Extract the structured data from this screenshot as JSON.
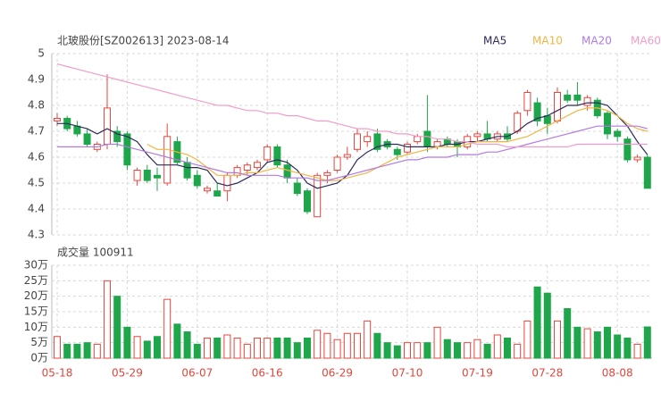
{
  "chart_data": [
    {
      "type": "candlestick",
      "title": "北玻股份[SZ002613] 2023-08-14",
      "up_color": "#e8453c",
      "down_color": "#1fa64a",
      "open": [
        4.74,
        4.75,
        4.72,
        4.69,
        4.63,
        4.65,
        4.7,
        4.69,
        4.51,
        4.55,
        4.53,
        4.5,
        4.66,
        4.58,
        4.53,
        4.47,
        4.47,
        4.47,
        4.53,
        4.55,
        4.56,
        4.59,
        4.64,
        4.57,
        4.5,
        4.47,
        4.37,
        4.53,
        4.55,
        4.6,
        4.63,
        4.66,
        4.69,
        4.66,
        4.63,
        4.62,
        4.66,
        4.7,
        4.64,
        4.67,
        4.66,
        4.64,
        4.68,
        4.69,
        4.67,
        4.69,
        4.7,
        4.78,
        4.81,
        4.76,
        4.74,
        4.84,
        4.84,
        4.8,
        4.82,
        4.77,
        4.7,
        4.67,
        4.59,
        4.6
      ],
      "high": [
        4.77,
        4.76,
        4.74,
        4.71,
        4.66,
        4.92,
        4.72,
        4.7,
        4.56,
        4.57,
        4.56,
        4.73,
        4.68,
        4.6,
        4.55,
        4.49,
        4.5,
        4.54,
        4.57,
        4.58,
        4.59,
        4.65,
        4.65,
        4.59,
        4.52,
        4.48,
        4.54,
        4.55,
        4.61,
        4.64,
        4.71,
        4.7,
        4.71,
        4.67,
        4.64,
        4.66,
        4.69,
        4.84,
        4.67,
        4.68,
        4.67,
        4.69,
        4.7,
        4.74,
        4.7,
        4.72,
        4.78,
        4.86,
        4.83,
        4.79,
        4.87,
        4.86,
        4.89,
        4.84,
        4.83,
        4.78,
        4.71,
        4.68,
        4.61,
        4.61
      ],
      "low": [
        4.72,
        4.7,
        4.68,
        4.64,
        4.62,
        4.63,
        4.64,
        4.55,
        4.49,
        4.5,
        4.47,
        4.49,
        4.57,
        4.51,
        4.48,
        4.46,
        4.45,
        4.43,
        4.52,
        4.53,
        4.55,
        4.58,
        4.56,
        4.5,
        4.45,
        4.38,
        4.37,
        4.5,
        4.54,
        4.59,
        4.62,
        4.64,
        4.62,
        4.63,
        4.59,
        4.61,
        4.65,
        4.62,
        4.63,
        4.64,
        4.6,
        4.63,
        4.66,
        4.66,
        4.66,
        4.66,
        4.69,
        4.76,
        4.72,
        4.69,
        4.73,
        4.81,
        4.8,
        4.78,
        4.75,
        4.67,
        4.66,
        4.58,
        4.58,
        4.48
      ],
      "close": [
        4.75,
        4.71,
        4.69,
        4.65,
        4.65,
        4.79,
        4.66,
        4.57,
        4.55,
        4.51,
        4.52,
        4.68,
        4.58,
        4.52,
        4.49,
        4.48,
        4.45,
        4.53,
        4.56,
        4.57,
        4.58,
        4.64,
        4.57,
        4.52,
        4.46,
        4.39,
        4.53,
        4.54,
        4.6,
        4.61,
        4.69,
        4.68,
        4.63,
        4.64,
        4.61,
        4.65,
        4.68,
        4.64,
        4.66,
        4.65,
        4.64,
        4.68,
        4.69,
        4.67,
        4.69,
        4.67,
        4.77,
        4.85,
        4.74,
        4.73,
        4.85,
        4.82,
        4.82,
        4.83,
        4.76,
        4.69,
        4.68,
        4.59,
        4.6,
        4.48
      ],
      "series": [
        {
          "name": "MA5",
          "color": "#2d2b5c",
          "values": [
            4.73,
            4.73,
            4.72,
            4.71,
            4.69,
            4.71,
            4.69,
            4.68,
            4.66,
            4.61,
            4.57,
            4.57,
            4.57,
            4.56,
            4.56,
            4.55,
            4.5,
            4.49,
            4.5,
            4.52,
            4.54,
            4.58,
            4.59,
            4.58,
            4.55,
            4.5,
            4.48,
            4.49,
            4.5,
            4.53,
            4.59,
            4.62,
            4.64,
            4.65,
            4.65,
            4.64,
            4.64,
            4.64,
            4.64,
            4.65,
            4.65,
            4.66,
            4.66,
            4.67,
            4.68,
            4.68,
            4.7,
            4.73,
            4.75,
            4.76,
            4.78,
            4.8,
            4.8,
            4.81,
            4.81,
            4.8,
            4.76,
            4.72,
            4.66,
            4.61
          ]
        },
        {
          "name": "MA10",
          "color": "#f2b541",
          "values": [
            null,
            null,
            null,
            null,
            null,
            null,
            null,
            null,
            null,
            4.65,
            4.63,
            4.63,
            4.62,
            4.61,
            4.59,
            4.56,
            4.53,
            4.53,
            4.53,
            4.54,
            4.54,
            4.55,
            4.56,
            4.55,
            4.54,
            4.53,
            4.52,
            4.51,
            4.51,
            4.52,
            4.53,
            4.54,
            4.56,
            4.58,
            4.6,
            4.61,
            4.62,
            4.63,
            4.64,
            4.64,
            4.64,
            4.65,
            4.66,
            4.66,
            4.66,
            4.66,
            4.67,
            4.68,
            4.7,
            4.72,
            4.74,
            4.76,
            4.78,
            4.79,
            4.79,
            4.78,
            4.76,
            4.73,
            4.71,
            4.7
          ]
        },
        {
          "name": "MA20",
          "color": "#b27bdc",
          "values": [
            4.64,
            4.64,
            4.64,
            4.64,
            4.64,
            4.65,
            4.65,
            4.64,
            4.63,
            4.62,
            4.61,
            4.6,
            4.59,
            4.58,
            4.57,
            4.56,
            4.55,
            4.54,
            4.54,
            4.53,
            4.53,
            4.53,
            4.53,
            4.52,
            4.52,
            4.52,
            4.51,
            4.51,
            4.52,
            4.53,
            4.54,
            4.55,
            4.56,
            4.57,
            4.58,
            4.59,
            4.59,
            4.6,
            4.6,
            4.6,
            4.61,
            4.61,
            4.61,
            4.62,
            4.62,
            4.63,
            4.64,
            4.65,
            4.66,
            4.67,
            4.68,
            4.69,
            4.7,
            4.71,
            4.72,
            4.72,
            4.72,
            4.72,
            4.72,
            4.71
          ]
        },
        {
          "name": "MA60",
          "color": "#f39cc9",
          "values": [
            4.96,
            4.95,
            4.94,
            4.93,
            4.92,
            4.91,
            4.9,
            4.89,
            4.88,
            4.87,
            4.86,
            4.85,
            4.84,
            4.83,
            4.82,
            4.81,
            4.8,
            4.8,
            4.79,
            4.78,
            4.78,
            4.77,
            4.77,
            4.76,
            4.76,
            4.75,
            4.74,
            4.74,
            4.73,
            4.72,
            4.71,
            4.71,
            4.7,
            4.7,
            4.69,
            4.69,
            4.68,
            4.68,
            4.67,
            4.67,
            4.66,
            4.66,
            4.65,
            4.65,
            4.65,
            4.64,
            4.64,
            4.64,
            4.64,
            4.64,
            4.64,
            4.64,
            4.65,
            4.65,
            4.65,
            4.65,
            4.65,
            4.65,
            4.65,
            4.65
          ]
        }
      ],
      "ylim": [
        4.3,
        5
      ],
      "yticks": [
        5,
        4.9,
        4.8,
        4.7,
        4.6,
        4.5,
        4.4,
        4.3
      ],
      "grid": true
    },
    {
      "type": "bar",
      "title": "成交量 100911",
      "categories": [
        "05-18",
        null,
        null,
        null,
        null,
        null,
        null,
        "05-29",
        null,
        null,
        null,
        null,
        null,
        null,
        "06-07",
        null,
        null,
        null,
        null,
        null,
        null,
        "06-16",
        null,
        null,
        null,
        null,
        null,
        null,
        "06-29",
        null,
        null,
        null,
        null,
        null,
        null,
        "07-10",
        null,
        null,
        null,
        null,
        null,
        null,
        "07-19",
        null,
        null,
        null,
        null,
        null,
        null,
        "07-28",
        null,
        null,
        null,
        null,
        null,
        null,
        "08-08",
        null,
        null,
        null
      ],
      "values": [
        7,
        4.5,
        4.5,
        5,
        4.5,
        25,
        20,
        10,
        7,
        5.5,
        7,
        19,
        11,
        8.5,
        4.5,
        6.5,
        6.5,
        7.5,
        6.5,
        4.5,
        6.5,
        6.5,
        6.5,
        6.5,
        5,
        6.5,
        9,
        8,
        6,
        8,
        8,
        12,
        8,
        5,
        4,
        5,
        5,
        5,
        10,
        6,
        5,
        5,
        6,
        4.5,
        7.5,
        6.5,
        4.5,
        12,
        23,
        21,
        12,
        16,
        10,
        9.5,
        8.5,
        10,
        7.5,
        6.5,
        4.5,
        10.0911
      ],
      "ylim": [
        0,
        30
      ],
      "yticks": [
        {
          "value": 30,
          "label": "30万"
        },
        {
          "value": 25,
          "label": "25万"
        },
        {
          "value": 20,
          "label": "20万"
        },
        {
          "value": 15,
          "label": "15万"
        },
        {
          "value": 10,
          "label": "10万"
        },
        {
          "value": 5,
          "label": "5万"
        },
        {
          "value": 0,
          "label": "0万"
        }
      ],
      "grid": true
    }
  ]
}
